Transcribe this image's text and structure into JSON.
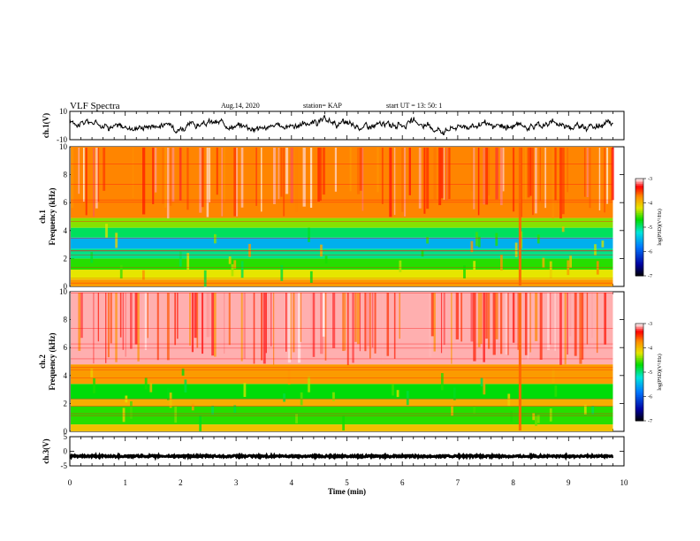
{
  "header": {
    "title": "VLF Spectra",
    "date": "Aug.14, 2020",
    "station": "station= KAP",
    "start": "start  UT  =    13: 50: 1"
  },
  "chart_data": [
    {
      "type": "line",
      "panel": "ch1-waveform",
      "ylabel": "ch.1(V)",
      "ylim": [
        -10,
        10
      ],
      "y_ticks": [
        "10",
        "-10"
      ],
      "xlim": [
        0,
        10
      ],
      "data_x_end": 9.8,
      "series": [
        {
          "color": "#000000",
          "mean": 0,
          "amplitude_v": 4,
          "approx_values": [
            3,
            2,
            -2,
            1,
            -1,
            2,
            0,
            -2,
            1,
            3,
            -1,
            0,
            2,
            -3,
            1,
            -2,
            0,
            2,
            -1,
            1
          ]
        }
      ]
    },
    {
      "type": "heatmap",
      "panel": "ch1-spectrogram",
      "ylabel": "ch.1\nFrequency  (kHz)",
      "ylim": [
        0,
        10
      ],
      "y_ticks": [
        "0",
        "2",
        "4",
        "6",
        "8",
        "10"
      ],
      "xlim": [
        0,
        10
      ],
      "data_x_end": 9.8,
      "bands": [
        {
          "from_khz": 0.0,
          "to_khz": 0.5,
          "level": -3.8
        },
        {
          "from_khz": 0.5,
          "to_khz": 1.2,
          "level": -4.2
        },
        {
          "from_khz": 1.2,
          "to_khz": 2.0,
          "level": -4.6
        },
        {
          "from_khz": 2.0,
          "to_khz": 2.7,
          "level": -5.0
        },
        {
          "from_khz": 2.7,
          "to_khz": 3.5,
          "level": -5.5
        },
        {
          "from_khz": 3.5,
          "to_khz": 4.2,
          "level": -4.9
        },
        {
          "from_khz": 4.2,
          "to_khz": 4.9,
          "level": -4.4
        },
        {
          "from_khz": 4.9,
          "to_khz": 10.0,
          "level": -3.7
        }
      ],
      "colorbar": {
        "label": "log(PSD)(V²/Hz)",
        "range": [
          -7,
          -3
        ],
        "ticks": [
          "-3",
          "-4",
          "-5",
          "-6",
          "-7"
        ]
      }
    },
    {
      "type": "heatmap",
      "panel": "ch2-spectrogram",
      "ylabel": "ch.2\nFrequency  (kHz)",
      "ylim": [
        0,
        10
      ],
      "y_ticks": [
        "0",
        "2",
        "4",
        "6",
        "8",
        "10"
      ],
      "xlim": [
        0,
        10
      ],
      "data_x_end": 9.8,
      "bands": [
        {
          "from_khz": 0.0,
          "to_khz": 0.5,
          "level": -4.0
        },
        {
          "from_khz": 0.5,
          "to_khz": 1.8,
          "level": -4.6
        },
        {
          "from_khz": 1.8,
          "to_khz": 2.3,
          "level": -3.9
        },
        {
          "from_khz": 2.3,
          "to_khz": 3.4,
          "level": -4.7
        },
        {
          "from_khz": 3.4,
          "to_khz": 4.8,
          "level": -3.8
        },
        {
          "from_khz": 4.8,
          "to_khz": 10.0,
          "level": -3.1
        }
      ],
      "colorbar": {
        "label": "log(PSD)(V²/Hz)",
        "range": [
          -7,
          -3
        ],
        "ticks": [
          "-3",
          "-4",
          "-5",
          "-6",
          "-7"
        ]
      }
    },
    {
      "type": "line",
      "panel": "ch3-waveform",
      "ylabel": "ch.3(V)",
      "ylim": [
        -5,
        5
      ],
      "y_ticks": [
        "5",
        "0",
        "-5"
      ],
      "xlim": [
        0,
        10
      ],
      "data_x_end": 9.8,
      "series": [
        {
          "color": "#000000",
          "mean": -1.7,
          "amplitude_v": 0.3
        }
      ]
    }
  ],
  "x_axis": {
    "label": "Time  (min)",
    "ticks": [
      "0",
      "1",
      "2",
      "3",
      "4",
      "5",
      "6",
      "7",
      "8",
      "9",
      "10"
    ]
  }
}
